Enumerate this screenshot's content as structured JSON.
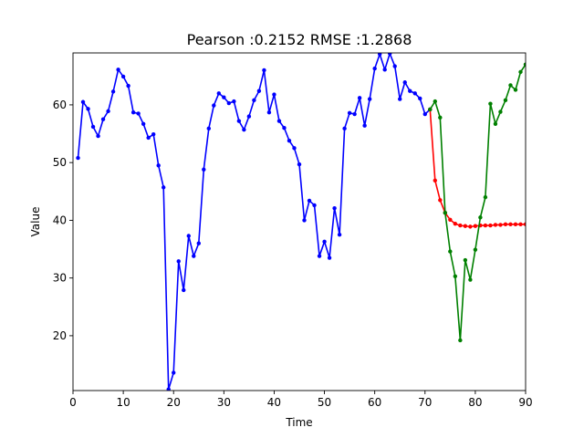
{
  "chart_data": {
    "type": "line",
    "title": "Pearson :0.2152  RMSE :1.2868",
    "xlabel": "Time",
    "ylabel": "Value",
    "xlim": [
      0,
      90
    ],
    "ylim": [
      10.5,
      69
    ],
    "xticks": [
      0,
      10,
      20,
      30,
      40,
      50,
      60,
      70,
      80,
      90
    ],
    "yticks": [
      20,
      30,
      40,
      50,
      60
    ],
    "grid": false,
    "legend": "none",
    "series": [
      {
        "color": "#0000ff",
        "x": [
          1,
          2,
          3,
          4,
          5,
          6,
          7,
          8,
          9,
          10,
          11,
          12,
          13,
          14,
          15,
          16,
          17,
          18,
          19,
          20,
          21,
          22,
          23,
          24,
          25,
          26,
          27,
          28,
          29,
          30,
          31,
          32,
          33,
          34,
          35,
          36,
          37,
          38,
          39,
          40,
          41,
          42,
          43,
          44,
          45,
          46,
          47,
          48,
          49,
          50,
          51,
          52,
          53,
          54,
          55,
          56,
          57,
          58,
          59,
          60,
          61,
          62,
          63,
          64,
          65,
          66,
          67,
          68,
          69,
          70,
          71
        ],
        "y": [
          50.8,
          60.5,
          59.3,
          56.2,
          54.6,
          57.5,
          58.9,
          62.3,
          66.1,
          64.9,
          63.3,
          58.7,
          58.5,
          56.7,
          54.3,
          54.9,
          49.5,
          45.7,
          10.7,
          13.6,
          32.9,
          27.9,
          37.3,
          33.8,
          36.0,
          48.8,
          55.9,
          59.9,
          62.0,
          61.3,
          60.3,
          60.6,
          57.2,
          55.7,
          58.0,
          60.8,
          62.4,
          66.0,
          58.7,
          61.8,
          57.2,
          56.0,
          53.8,
          52.5,
          49.7,
          40.0,
          43.4,
          42.6,
          33.8,
          36.3,
          33.5,
          42.1,
          37.5,
          55.9,
          58.6,
          58.4,
          61.2,
          56.4,
          61.0,
          66.3,
          68.8,
          66.1,
          68.9,
          66.7,
          61.0,
          63.9,
          62.4,
          62.0,
          61.1,
          58.4,
          59.2
        ]
      },
      {
        "color": "#ff0000",
        "x": [
          71,
          72,
          73,
          74,
          75,
          76,
          77,
          78,
          79,
          80,
          81,
          82,
          83,
          84,
          85,
          86,
          87,
          88,
          89,
          90
        ],
        "y": [
          59.2,
          46.9,
          43.5,
          41.3,
          40.1,
          39.4,
          39.1,
          39.0,
          38.9,
          39.0,
          39.1,
          39.1,
          39.1,
          39.2,
          39.2,
          39.3,
          39.3,
          39.3,
          39.3,
          39.3
        ]
      },
      {
        "color": "#008000",
        "x": [
          71,
          72,
          73,
          74,
          75,
          76,
          77,
          78,
          79,
          80,
          81,
          82,
          83,
          84,
          85,
          86,
          87,
          88,
          89,
          90
        ],
        "y": [
          59.2,
          60.6,
          57.8,
          41.3,
          34.6,
          30.3,
          19.2,
          33.1,
          29.7,
          34.9,
          40.5,
          44.0,
          60.2,
          56.7,
          58.8,
          60.8,
          63.4,
          62.6,
          65.7,
          67.0
        ]
      }
    ]
  }
}
